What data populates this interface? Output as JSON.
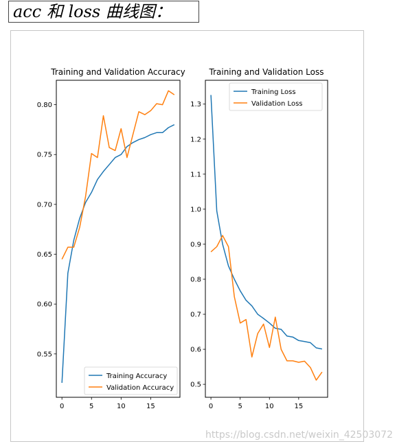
{
  "header": {
    "title": "acc 和 loss 曲线图："
  },
  "watermark": "https://blog.csdn.net/weixin_42503072",
  "colors": {
    "training": "#1f77b4",
    "validation": "#ff7f0e",
    "axis": "#000000"
  },
  "chart_data": [
    {
      "type": "line",
      "title": "Training and Validation Accuracy",
      "xlabel": "",
      "ylabel": "",
      "xlim": [
        -0.95,
        19.95
      ],
      "ylim": [
        0.5065,
        0.8245
      ],
      "xticks": [
        0,
        5,
        10,
        15
      ],
      "yticks": [
        0.55,
        0.6,
        0.65,
        0.7,
        0.75,
        0.8
      ],
      "ytick_labels": [
        "0.55",
        "0.60",
        "0.65",
        "0.70",
        "0.75",
        "0.80"
      ],
      "legend": "lower-right",
      "x": [
        0,
        1,
        2,
        3,
        4,
        5,
        6,
        7,
        8,
        9,
        10,
        11,
        12,
        13,
        14,
        15,
        16,
        17,
        18,
        19
      ],
      "series": [
        {
          "name": "Training Accuracy",
          "color": "#1f77b4",
          "values": [
            0.521,
            0.631,
            0.664,
            0.686,
            0.702,
            0.712,
            0.725,
            0.733,
            0.74,
            0.747,
            0.75,
            0.758,
            0.762,
            0.765,
            0.767,
            0.77,
            0.772,
            0.772,
            0.777,
            0.78
          ]
        },
        {
          "name": "Validation Accuracy",
          "color": "#ff7f0e",
          "values": [
            0.645,
            0.657,
            0.657,
            0.677,
            0.708,
            0.751,
            0.747,
            0.789,
            0.757,
            0.754,
            0.776,
            0.747,
            0.77,
            0.793,
            0.79,
            0.794,
            0.801,
            0.8,
            0.814,
            0.81
          ]
        }
      ]
    },
    {
      "type": "line",
      "title": "Training and Validation Loss",
      "xlabel": "",
      "ylabel": "",
      "xlim": [
        -0.95,
        19.95
      ],
      "ylim": [
        0.463,
        1.368
      ],
      "xticks": [
        0,
        5,
        10,
        15
      ],
      "yticks": [
        0.5,
        0.6,
        0.7,
        0.8,
        0.9,
        1.0,
        1.1,
        1.2,
        1.3
      ],
      "ytick_labels": [
        "0.5",
        "0.6",
        "0.7",
        "0.8",
        "0.9",
        "1.0",
        "1.1",
        "1.2",
        "1.3"
      ],
      "legend": "top-right",
      "x": [
        0,
        1,
        2,
        3,
        4,
        5,
        6,
        7,
        8,
        9,
        10,
        11,
        12,
        13,
        14,
        15,
        16,
        17,
        18,
        19
      ],
      "series": [
        {
          "name": "Training Loss",
          "color": "#1f77b4",
          "values": [
            1.326,
            0.995,
            0.9,
            0.838,
            0.8,
            0.767,
            0.74,
            0.724,
            0.7,
            0.688,
            0.675,
            0.66,
            0.657,
            0.638,
            0.635,
            0.625,
            0.622,
            0.619,
            0.604,
            0.601
          ]
        },
        {
          "name": "Validation Loss",
          "color": "#ff7f0e",
          "values": [
            0.878,
            0.893,
            0.925,
            0.893,
            0.75,
            0.675,
            0.685,
            0.578,
            0.645,
            0.672,
            0.605,
            0.692,
            0.6,
            0.567,
            0.567,
            0.563,
            0.566,
            0.548,
            0.512,
            0.535
          ]
        }
      ]
    }
  ]
}
